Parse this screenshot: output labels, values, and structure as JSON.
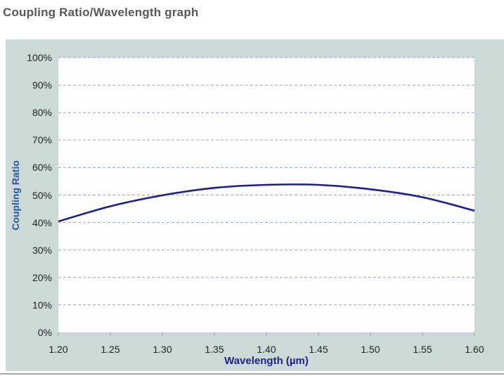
{
  "page": {
    "title": "Coupling Ratio/Wavelength graph"
  },
  "colors": {
    "panel_background": "#cbdad7",
    "plot_background": "#fdfefd",
    "gridline": "#a3a9c9",
    "curve": "#1b1b9e",
    "tick_mark": "#96a19e",
    "y_axis_title": "#2b579a",
    "x_axis_title": "#1f1f8f",
    "tick_label": "#222326",
    "page_title": "#58585b"
  },
  "chart_data": {
    "type": "line",
    "title": "Coupling Ratio/Wavelength graph",
    "xlabel": "Wavelength (µm)",
    "ylabel": "Coupling Ratio",
    "x": [
      1.2,
      1.25,
      1.3,
      1.35,
      1.4,
      1.45,
      1.5,
      1.55,
      1.6
    ],
    "series": [
      {
        "name": "Coupling Ratio",
        "values": [
          40.4,
          45.9,
          49.9,
          52.6,
          53.7,
          53.7,
          52.1,
          49.2,
          44.3
        ]
      }
    ],
    "xlim": [
      1.2,
      1.6
    ],
    "ylim": [
      0,
      100
    ],
    "x_ticks": [
      "1.20",
      "1.25",
      "1.30",
      "1.35",
      "1.40",
      "1.45",
      "1.50",
      "1.55",
      "1.60"
    ],
    "y_ticks": [
      "0%",
      "10%",
      "20%",
      "30%",
      "40%",
      "50%",
      "60%",
      "70%",
      "80%",
      "90%",
      "100%"
    ],
    "grid": "horizontal-dashed",
    "legend": "none"
  }
}
